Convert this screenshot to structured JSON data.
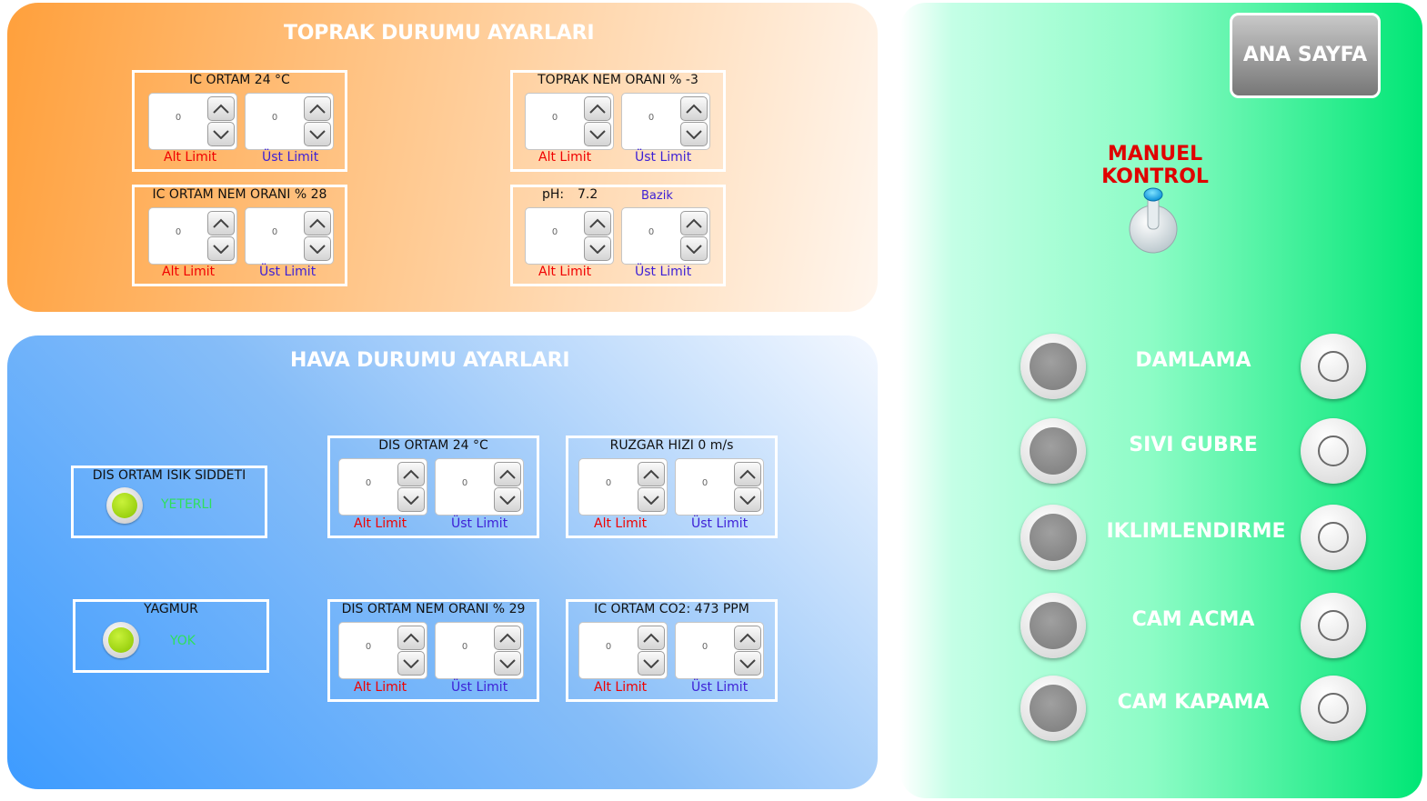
{
  "soil": {
    "title": "TOPRAK DURUMU AYARLARI",
    "indoor_temp": {
      "label": "IC ORTAM 24 °C",
      "low": "0",
      "high": "0"
    },
    "soil_humidity": {
      "label": "TOPRAK NEM ORANI % -3",
      "low": "0",
      "high": "0"
    },
    "indoor_humidity": {
      "label": "IC ORTAM NEM ORANI % 28",
      "low": "0",
      "high": "0"
    },
    "ph": {
      "label": "pH:",
      "value": "7.2",
      "state": "Bazik",
      "low": "0",
      "high": "0"
    }
  },
  "weather": {
    "title": "HAVA DURUMU AYARLARI",
    "light": {
      "label": "DIS ORTAM ISIK SIDDETI",
      "status": "YETERLI"
    },
    "rain": {
      "label": "YAGMUR",
      "status": "YOK"
    },
    "outdoor_temp": {
      "label": "DIS ORTAM 24 °C",
      "low": "0",
      "high": "0"
    },
    "wind": {
      "label": "RUZGAR HIZI 0 m/s",
      "low": "0",
      "high": "0"
    },
    "outdoor_humidity": {
      "label": "DIS ORTAM NEM ORANI % 29",
      "low": "0",
      "high": "0"
    },
    "co2": {
      "label": "IC ORTAM CO2: 473 PPM",
      "low": "0",
      "high": "0"
    }
  },
  "labels": {
    "low": "Alt Limit",
    "high": "Üst Limit"
  },
  "manual": {
    "home_button": "ANA SAYFA",
    "title": "MANUEL KONTROL",
    "devices": [
      "DAMLAMA",
      "SIVI GUBRE",
      "IKLIMLENDIRME",
      "CAM ACMA",
      "CAM KAPAMA"
    ]
  },
  "icons": {
    "up": "chevron-up-icon",
    "down": "chevron-down-icon"
  },
  "colors": {
    "soil_accent": "#ffa03c",
    "weather_accent": "#3d9bff",
    "manual_accent": "#00e675",
    "low_label": "#f00000",
    "high_label": "#3c1fd6",
    "title_red": "#e00000"
  }
}
